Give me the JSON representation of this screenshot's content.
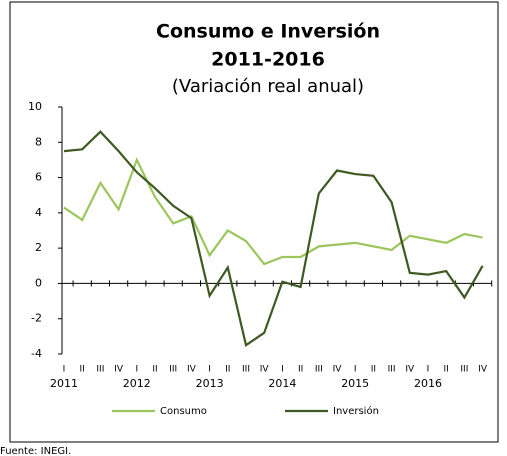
{
  "chart_data": {
    "type": "line",
    "title": "Consumo e Inversión",
    "subtitle": "2011-2016",
    "unit_note": "(Variación real anual)",
    "source": "Fuente: INEGI.",
    "categories": [
      "I",
      "II",
      "III",
      "IV",
      "I",
      "II",
      "III",
      "IV",
      "I",
      "II",
      "III",
      "IV",
      "I",
      "II",
      "III",
      "IV",
      "I",
      "II",
      "III",
      "IV",
      "I",
      "II",
      "III",
      "IV"
    ],
    "year_labels": [
      "2011",
      "2012",
      "2013",
      "2014",
      "2015",
      "2016"
    ],
    "series": [
      {
        "name": "Consumo",
        "color": "#9cc55c",
        "values": [
          4.3,
          3.6,
          5.7,
          4.2,
          7.0,
          4.9,
          3.4,
          3.8,
          1.6,
          3.0,
          2.4,
          1.1,
          1.5,
          1.5,
          2.1,
          2.2,
          2.3,
          2.1,
          1.9,
          2.7,
          2.5,
          2.3,
          2.8,
          2.6
        ]
      },
      {
        "name": "Inversión",
        "color": "#3e5a22",
        "values": [
          7.5,
          7.6,
          8.6,
          7.5,
          6.3,
          5.4,
          4.4,
          3.7,
          -0.7,
          0.9,
          -3.5,
          -2.8,
          0.1,
          -0.2,
          5.1,
          6.4,
          6.2,
          6.1,
          4.6,
          0.6,
          0.5,
          0.7,
          -0.8,
          1.0
        ]
      }
    ],
    "ylim": [
      -4,
      10
    ],
    "yticks": [
      -4,
      -2,
      0,
      2,
      4,
      6,
      8,
      10
    ]
  }
}
